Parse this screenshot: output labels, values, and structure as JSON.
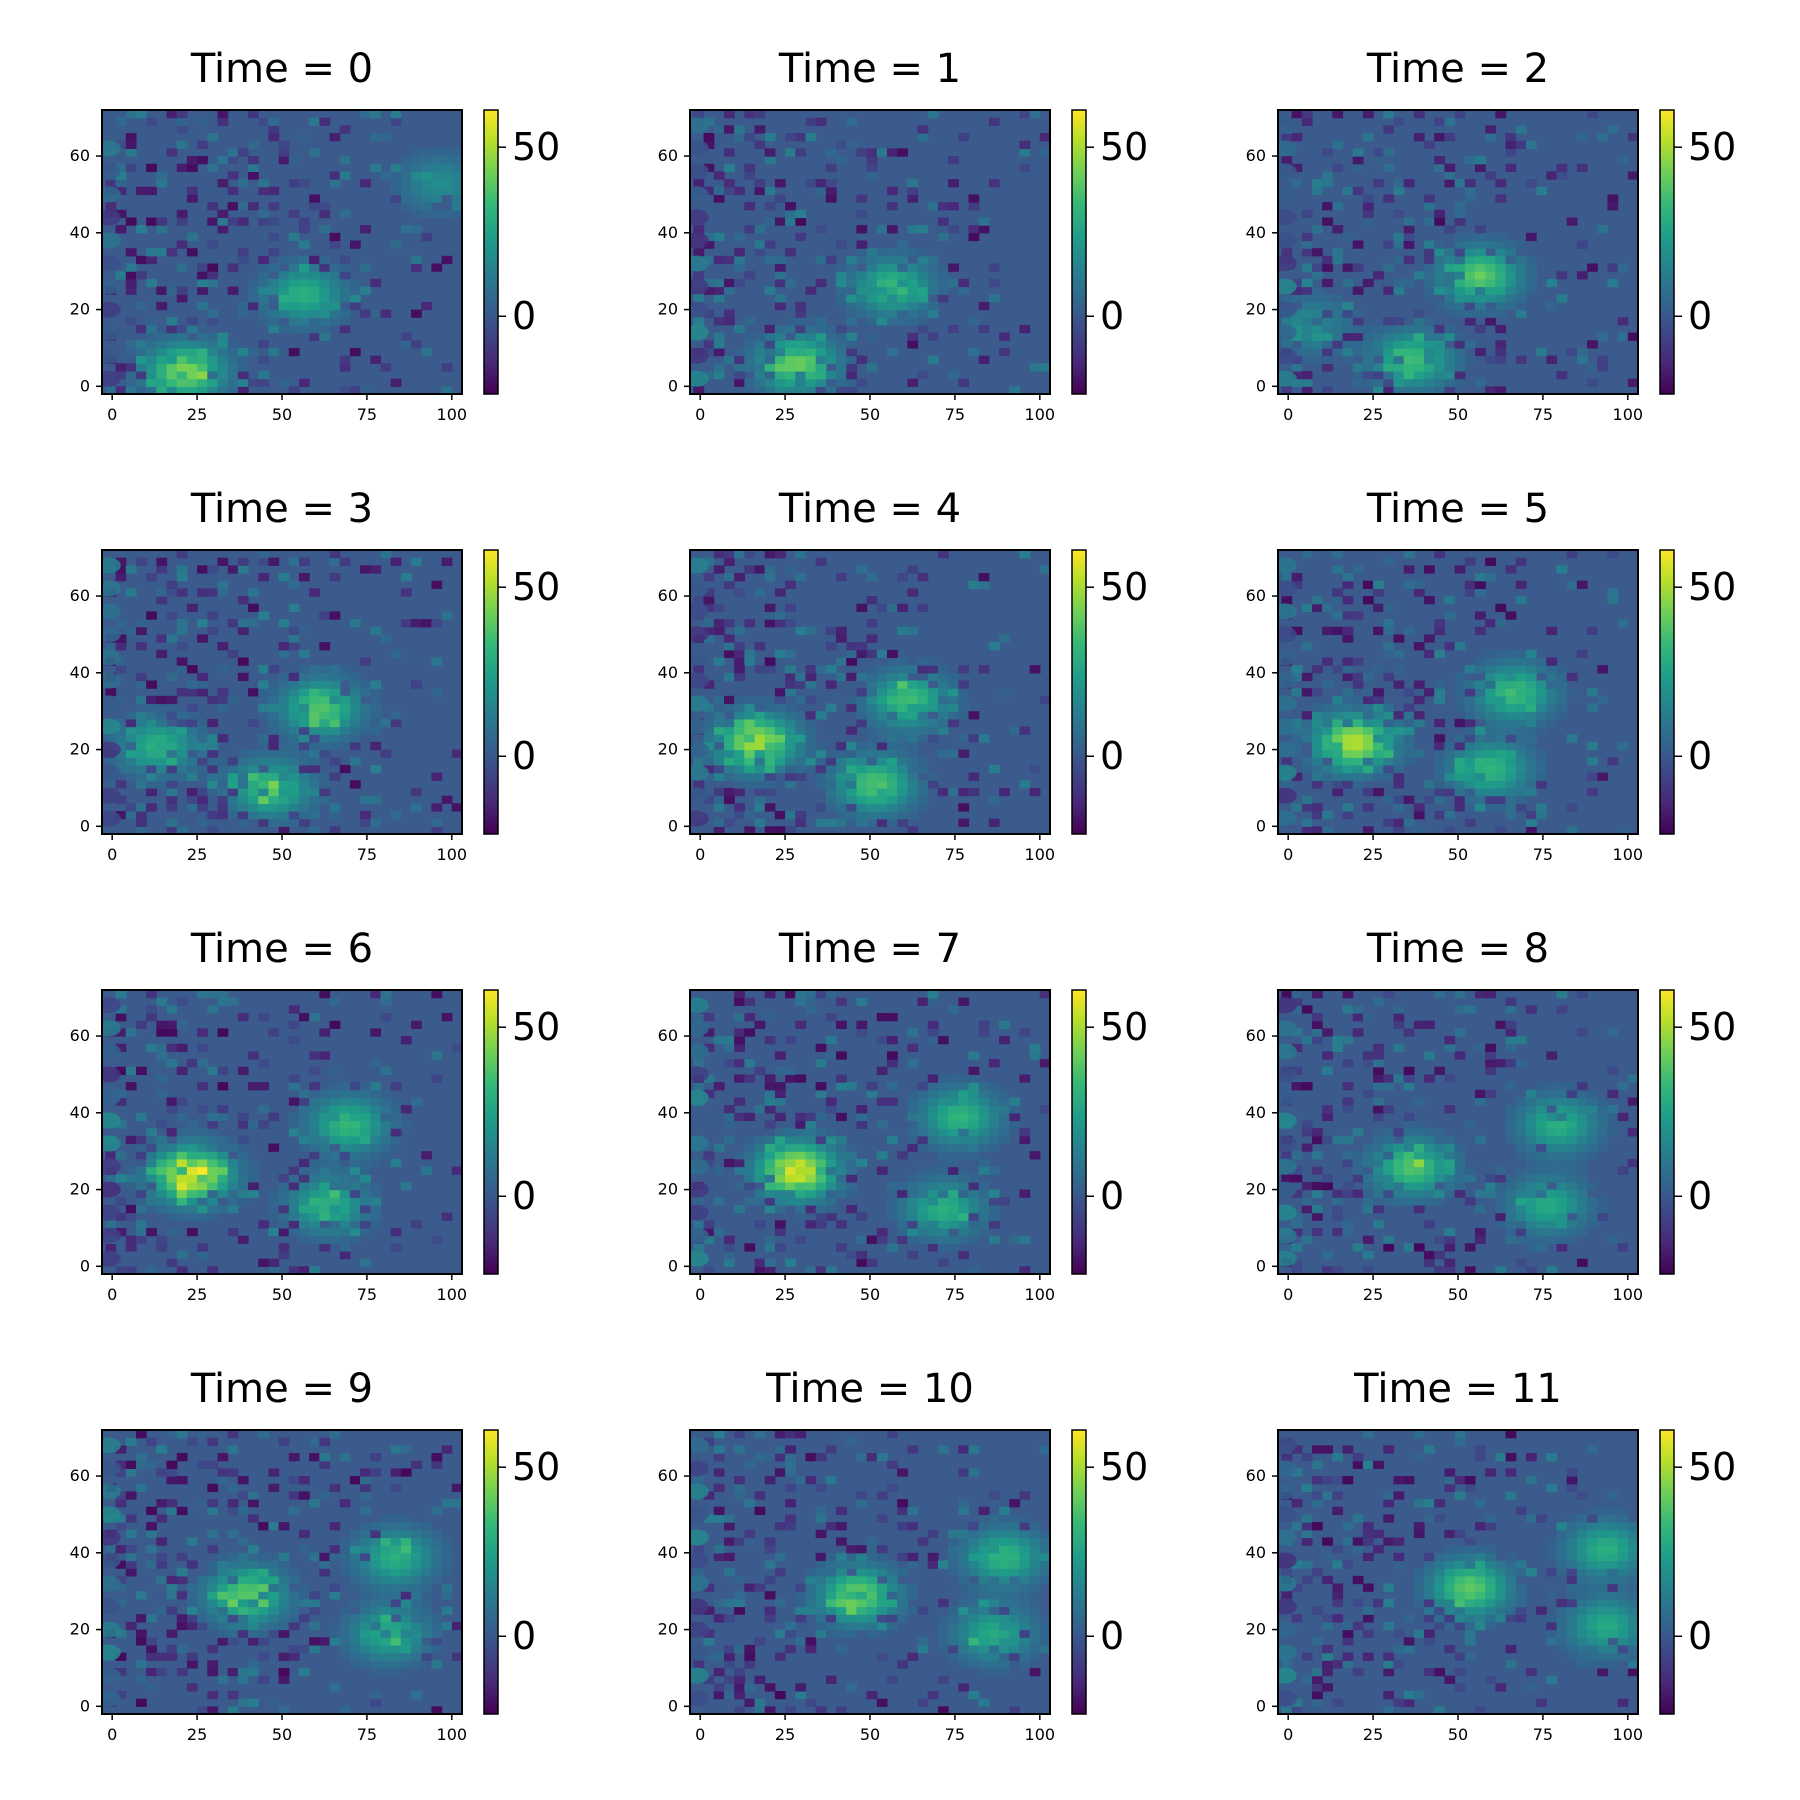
{
  "colors": {
    "background": "#3b5b8c",
    "viridis": [
      "#440154",
      "#482878",
      "#3e4989",
      "#31688e",
      "#26828e",
      "#1f9e89",
      "#35b779",
      "#6ece58",
      "#b5de2b",
      "#fde725"
    ]
  },
  "chart_data": {
    "type": "heatmap",
    "layout": "4x3 small multiples, each with its own colorbar",
    "colormap": "viridis",
    "x_ticks": [
      "0",
      "25",
      "50",
      "75",
      "100"
    ],
    "y_ticks": [
      "0",
      "20",
      "40",
      "60"
    ],
    "xlim": [
      -3,
      103
    ],
    "ylim": [
      -2,
      72
    ],
    "colorbar": {
      "range": [
        -23,
        61
      ],
      "ticks": [
        "0",
        "50"
      ],
      "tick_values": [
        0,
        50
      ]
    },
    "panels": [
      {
        "title": "Time = 0",
        "blobs": [
          {
            "x": 55,
            "y": 23,
            "peak": 30
          },
          {
            "x": 20,
            "y": 3,
            "peak": 45
          },
          {
            "x": 95,
            "y": 52,
            "peak": 18
          }
        ]
      },
      {
        "title": "Time = 1",
        "blobs": [
          {
            "x": 55,
            "y": 25,
            "peak": 33
          },
          {
            "x": 27,
            "y": 5,
            "peak": 42
          }
        ]
      },
      {
        "title": "Time = 2",
        "blobs": [
          {
            "x": 55,
            "y": 28,
            "peak": 40
          },
          {
            "x": 35,
            "y": 6,
            "peak": 35
          },
          {
            "x": 5,
            "y": 15,
            "peak": 18
          }
        ]
      },
      {
        "title": "Time = 3",
        "blobs": [
          {
            "x": 60,
            "y": 30,
            "peak": 38
          },
          {
            "x": 45,
            "y": 9,
            "peak": 35
          },
          {
            "x": 12,
            "y": 20,
            "peak": 30
          }
        ]
      },
      {
        "title": "Time = 4",
        "blobs": [
          {
            "x": 60,
            "y": 32,
            "peak": 35
          },
          {
            "x": 50,
            "y": 10,
            "peak": 38
          },
          {
            "x": 15,
            "y": 21,
            "peak": 50
          }
        ]
      },
      {
        "title": "Time = 5",
        "blobs": [
          {
            "x": 65,
            "y": 34,
            "peak": 35
          },
          {
            "x": 58,
            "y": 14,
            "peak": 32
          },
          {
            "x": 18,
            "y": 21,
            "peak": 52
          }
        ]
      },
      {
        "title": "Time = 6",
        "blobs": [
          {
            "x": 68,
            "y": 36,
            "peak": 33
          },
          {
            "x": 62,
            "y": 15,
            "peak": 30
          },
          {
            "x": 22,
            "y": 23,
            "peak": 58
          }
        ]
      },
      {
        "title": "Time = 7",
        "blobs": [
          {
            "x": 75,
            "y": 38,
            "peak": 32
          },
          {
            "x": 70,
            "y": 14,
            "peak": 30
          },
          {
            "x": 27,
            "y": 24,
            "peak": 58
          }
        ]
      },
      {
        "title": "Time = 8",
        "blobs": [
          {
            "x": 78,
            "y": 36,
            "peak": 30
          },
          {
            "x": 75,
            "y": 15,
            "peak": 28
          },
          {
            "x": 35,
            "y": 25,
            "peak": 38
          }
        ]
      },
      {
        "title": "Time = 9",
        "blobs": [
          {
            "x": 82,
            "y": 38,
            "peak": 30
          },
          {
            "x": 80,
            "y": 18,
            "peak": 28
          },
          {
            "x": 38,
            "y": 28,
            "peak": 40
          }
        ]
      },
      {
        "title": "Time = 10",
        "blobs": [
          {
            "x": 88,
            "y": 38,
            "peak": 32
          },
          {
            "x": 85,
            "y": 18,
            "peak": 28
          },
          {
            "x": 45,
            "y": 28,
            "peak": 42
          }
        ]
      },
      {
        "title": "Time = 11",
        "blobs": [
          {
            "x": 92,
            "y": 40,
            "peak": 30
          },
          {
            "x": 92,
            "y": 20,
            "peak": 28
          },
          {
            "x": 52,
            "y": 30,
            "peak": 40
          }
        ]
      }
    ]
  }
}
